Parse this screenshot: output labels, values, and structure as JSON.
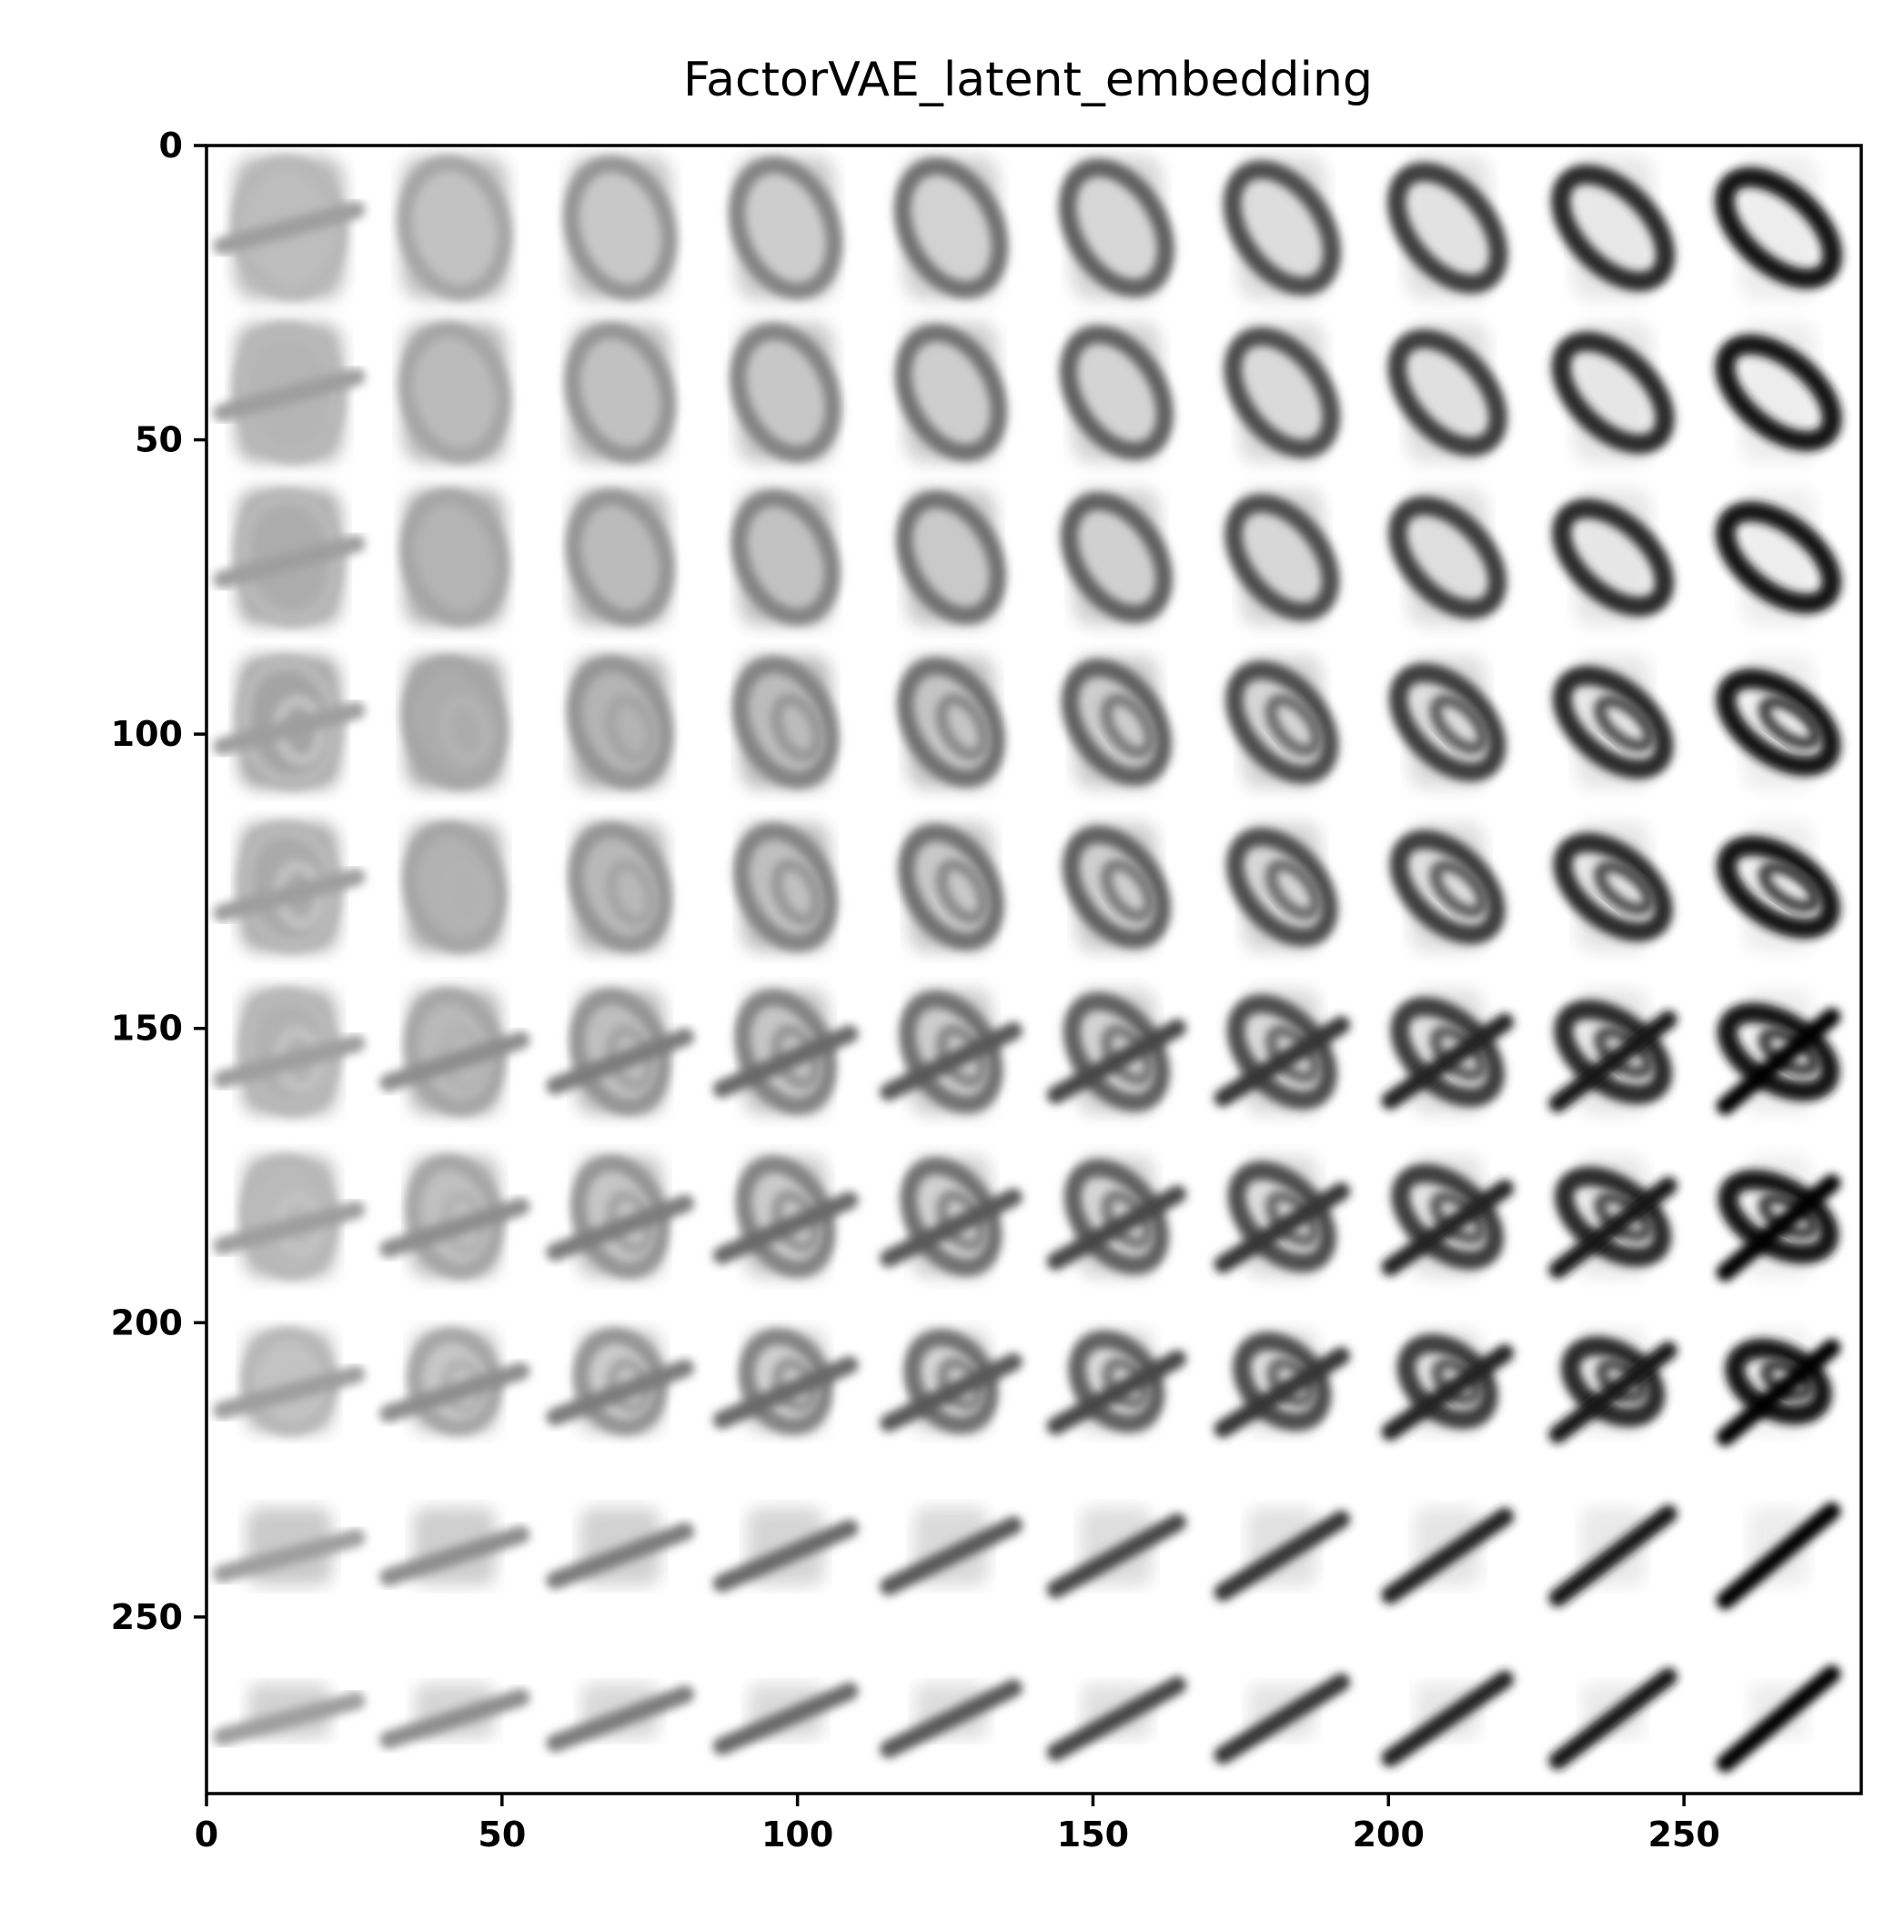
{
  "chart_data": {
    "type": "heatmap",
    "title": "FactorVAE_latent_embedding",
    "xlabel": "",
    "ylabel": "",
    "xlim": [
      0,
      280
    ],
    "ylim": [
      280,
      0
    ],
    "xticks": [
      0,
      50,
      100,
      150,
      200,
      250
    ],
    "yticks": [
      0,
      50,
      100,
      150,
      200,
      250
    ],
    "grid": false,
    "colormap": "gray_r",
    "grid_rows": 10,
    "grid_cols": 10,
    "cell_size": 28,
    "content": "10x10 grid of decoded digit images (latent traversal), transitioning between 3, 0, 6, 8 and 1-like shapes"
  }
}
